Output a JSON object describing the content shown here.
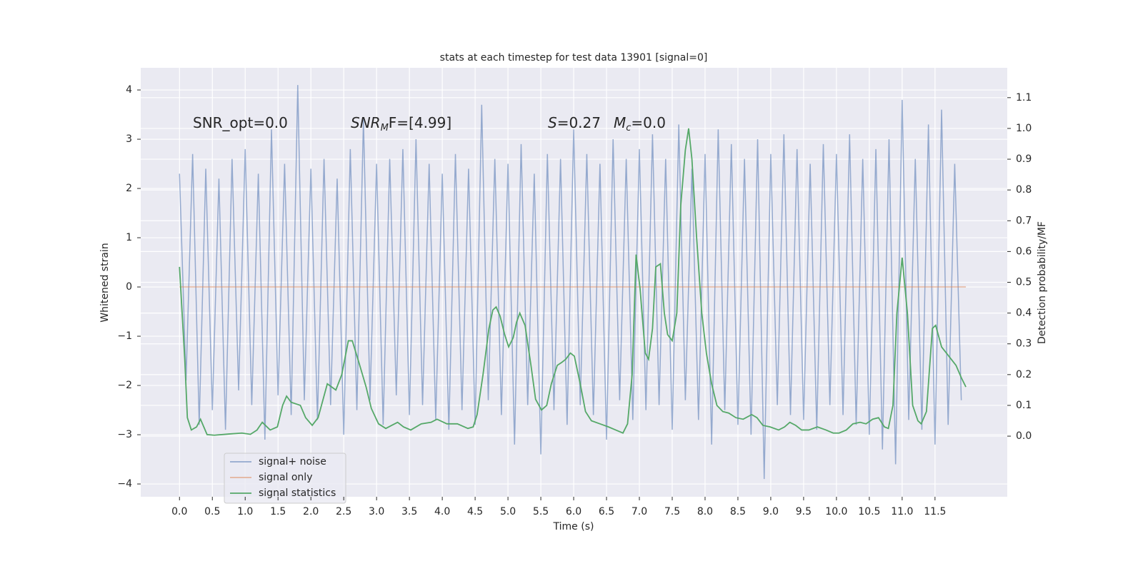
{
  "chart_data": {
    "type": "line",
    "title": "stats at each timestep for test data 13901 [signal=0]",
    "xlabel": "Time (s)",
    "ylabel": "Whitened strain",
    "y2label": "Detection probability/MF",
    "annotations": [
      [
        "SNR_opt=0.0"
      ],
      [
        "SNR",
        "M",
        "F=[4.99]"
      ],
      [
        "S",
        "=0.27"
      ],
      [
        "M",
        "c",
        "=0.0"
      ]
    ],
    "xlim": [
      -0.59,
      12.6
    ],
    "ylim": [
      -4.26,
      4.45
    ],
    "y2lim": [
      -0.197,
      1.197
    ],
    "xticks": [
      {
        "value": 0,
        "label": "0.0"
      },
      0.5,
      {
        "value": 1,
        "label": "1.0"
      },
      1.5,
      {
        "value": 2,
        "label": "2.0"
      },
      2.5,
      {
        "value": 3,
        "label": "3.0"
      },
      3.5,
      {
        "value": 4,
        "label": "4.0"
      },
      4.5,
      {
        "value": 5,
        "label": "5.0"
      },
      5.5,
      {
        "value": 6,
        "label": "6.0"
      },
      6.5,
      {
        "value": 7,
        "label": "7.0"
      },
      7.5,
      {
        "value": 8,
        "label": "8.0"
      },
      8.5,
      {
        "value": 9,
        "label": "9.0"
      },
      9.5,
      {
        "value": 10,
        "label": "10.0"
      },
      10.5,
      {
        "value": 11,
        "label": "11.0"
      },
      11.5
    ],
    "yticks": [
      {
        "value": -4,
        "label": "−4"
      },
      {
        "value": -3,
        "label": "−3"
      },
      {
        "value": -2,
        "label": "−2"
      },
      {
        "value": -1,
        "label": "−1"
      },
      0,
      1,
      2,
      3,
      4
    ],
    "y2ticks": [
      {
        "value": 0,
        "label": "0.0"
      },
      0.1,
      0.2,
      0.3,
      0.4,
      0.5,
      0.6,
      0.7,
      0.8,
      0.9,
      {
        "value": 1,
        "label": "1.0"
      },
      1.1
    ],
    "grid": true,
    "legend": "lower left",
    "series": [
      {
        "name": "signal+ noise",
        "color": "#4c72b0",
        "x": [
          0.0,
          0.1,
          0.2,
          0.3,
          0.4,
          0.5,
          0.6,
          0.7,
          0.8,
          0.9,
          1.0,
          1.1,
          1.2,
          1.3,
          1.4,
          1.5,
          1.6,
          1.7,
          1.8,
          1.9,
          2.0,
          2.1,
          2.2,
          2.3,
          2.4,
          2.5,
          2.6,
          2.7,
          2.8,
          2.9,
          3.0,
          3.1,
          3.2,
          3.3,
          3.4,
          3.5,
          3.6,
          3.7,
          3.8,
          3.9,
          4.0,
          4.1,
          4.2,
          4.3,
          4.4,
          4.5,
          4.6,
          4.7,
          4.8,
          4.9,
          5.0,
          5.1,
          5.2,
          5.3,
          5.4,
          5.5,
          5.6,
          5.7,
          5.8,
          5.9,
          6.0,
          6.1,
          6.2,
          6.3,
          6.4,
          6.5,
          6.6,
          6.7,
          6.8,
          6.9,
          7.0,
          7.1,
          7.2,
          7.3,
          7.4,
          7.5,
          7.6,
          7.7,
          7.8,
          7.9,
          8.0,
          8.1,
          8.2,
          8.3,
          8.4,
          8.5,
          8.6,
          8.7,
          8.8,
          8.9,
          9.0,
          9.1,
          9.2,
          9.3,
          9.4,
          9.5,
          9.6,
          9.7,
          9.8,
          9.9,
          10.0,
          10.1,
          10.2,
          10.3,
          10.4,
          10.5,
          10.6,
          10.7,
          10.8,
          10.9,
          11.0,
          11.1,
          11.2,
          11.3,
          11.4,
          11.5,
          11.6,
          11.7,
          11.8,
          11.9
        ],
        "values": [
          2.3,
          -1.9,
          2.7,
          -2.8,
          2.4,
          -2.5,
          2.2,
          -2.9,
          2.6,
          -2.1,
          2.8,
          -2.4,
          2.3,
          -3.1,
          3.2,
          -2.2,
          2.5,
          -2.6,
          4.1,
          -2.3,
          2.4,
          -2.7,
          2.6,
          -2.4,
          2.2,
          -3.0,
          2.8,
          -2.5,
          3.4,
          -2.3,
          2.5,
          -2.8,
          2.6,
          -2.2,
          2.8,
          -2.6,
          3.0,
          -2.4,
          2.5,
          -2.7,
          2.3,
          -2.9,
          2.7,
          -2.5,
          2.4,
          -2.8,
          3.7,
          -2.3,
          2.6,
          -2.6,
          2.5,
          -3.2,
          2.9,
          -2.4,
          2.3,
          -3.4,
          2.7,
          -2.5,
          2.6,
          -2.8,
          3.2,
          -2.4,
          2.7,
          -2.6,
          2.5,
          -3.1,
          3.0,
          -2.3,
          2.6,
          -2.7,
          2.8,
          -2.5,
          3.1,
          -2.4,
          2.6,
          -2.9,
          3.3,
          -2.3,
          2.4,
          -2.7,
          2.7,
          -3.2,
          3.2,
          -2.5,
          2.9,
          -2.8,
          2.6,
          -3.0,
          3.0,
          -3.9,
          2.7,
          -2.4,
          3.1,
          -2.6,
          2.8,
          -2.7,
          2.5,
          -2.9,
          2.9,
          -2.4,
          2.7,
          -2.6,
          3.1,
          -2.8,
          2.6,
          -3.0,
          2.8,
          -3.3,
          3.0,
          -3.6,
          3.8,
          -2.7,
          2.6,
          -2.9,
          3.3,
          -3.2,
          3.6,
          -2.8,
          2.5,
          -2.3
        ]
      },
      {
        "name": "signal only",
        "color": "#dd8452",
        "x": [
          0.0,
          11.97
        ],
        "values": [
          0,
          0
        ]
      },
      {
        "name": "signal statistics",
        "color": "#55a868",
        "axis": "y2",
        "x": [
          0,
          0.08,
          0.12,
          0.18,
          0.26,
          0.32,
          0.42,
          0.53,
          0.75,
          0.95,
          1.08,
          1.18,
          1.26,
          1.38,
          1.49,
          1.57,
          1.63,
          1.7,
          1.84,
          1.92,
          2.02,
          2.11,
          2.25,
          2.38,
          2.47,
          2.57,
          2.63,
          2.73,
          2.84,
          2.92,
          3.03,
          3.14,
          3.23,
          3.32,
          3.41,
          3.52,
          3.68,
          3.83,
          3.92,
          4.07,
          4.23,
          4.39,
          4.47,
          4.53,
          4.62,
          4.71,
          4.77,
          4.82,
          4.88,
          4.95,
          5.01,
          5.08,
          5.13,
          5.18,
          5.26,
          5.35,
          5.42,
          5.51,
          5.59,
          5.66,
          5.75,
          5.82,
          5.88,
          5.95,
          6.01,
          6.1,
          6.18,
          6.27,
          6.4,
          6.53,
          6.64,
          6.75,
          6.82,
          6.89,
          6.95,
          7.01,
          7.09,
          7.14,
          7.2,
          7.25,
          7.32,
          7.38,
          7.43,
          7.5,
          7.57,
          7.63,
          7.7,
          7.75,
          7.8,
          7.87,
          7.95,
          8.02,
          8.1,
          8.18,
          8.27,
          8.36,
          8.47,
          8.58,
          8.71,
          8.79,
          8.88,
          8.99,
          9.12,
          9.21,
          9.29,
          9.38,
          9.47,
          9.58,
          9.71,
          9.84,
          9.95,
          10.04,
          10.15,
          10.25,
          10.36,
          10.45,
          10.55,
          10.64,
          10.73,
          10.79,
          10.86,
          10.92,
          11.0,
          11.08,
          11.16,
          11.24,
          11.29,
          11.37,
          11.46,
          11.51,
          11.6,
          11.71,
          11.82,
          11.9,
          11.97
        ],
        "values": [
          0.55,
          0.25,
          0.06,
          0.02,
          0.03,
          0.055,
          0.005,
          0.003,
          0.007,
          0.01,
          0.006,
          0.02,
          0.045,
          0.02,
          0.03,
          0.1,
          0.13,
          0.11,
          0.1,
          0.06,
          0.035,
          0.06,
          0.17,
          0.15,
          0.2,
          0.31,
          0.31,
          0.24,
          0.16,
          0.09,
          0.04,
          0.025,
          0.035,
          0.045,
          0.03,
          0.02,
          0.04,
          0.045,
          0.055,
          0.04,
          0.04,
          0.025,
          0.03,
          0.07,
          0.2,
          0.35,
          0.41,
          0.42,
          0.39,
          0.33,
          0.29,
          0.32,
          0.37,
          0.4,
          0.36,
          0.23,
          0.12,
          0.085,
          0.1,
          0.17,
          0.23,
          0.24,
          0.25,
          0.27,
          0.26,
          0.17,
          0.08,
          0.05,
          0.04,
          0.03,
          0.02,
          0.01,
          0.04,
          0.2,
          0.59,
          0.48,
          0.27,
          0.25,
          0.35,
          0.55,
          0.56,
          0.4,
          0.33,
          0.31,
          0.4,
          0.75,
          0.93,
          1.0,
          0.9,
          0.65,
          0.4,
          0.27,
          0.17,
          0.1,
          0.08,
          0.075,
          0.06,
          0.055,
          0.07,
          0.06,
          0.035,
          0.03,
          0.02,
          0.03,
          0.045,
          0.035,
          0.02,
          0.02,
          0.03,
          0.02,
          0.01,
          0.01,
          0.02,
          0.04,
          0.045,
          0.04,
          0.055,
          0.06,
          0.03,
          0.025,
          0.1,
          0.4,
          0.58,
          0.4,
          0.1,
          0.05,
          0.04,
          0.08,
          0.35,
          0.36,
          0.29,
          0.26,
          0.23,
          0.19,
          0.16
        ]
      }
    ]
  }
}
